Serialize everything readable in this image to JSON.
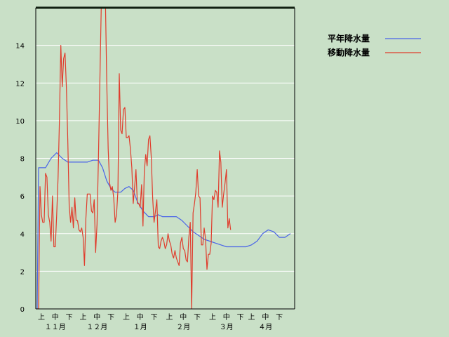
{
  "chart_data": {
    "type": "line",
    "title": "",
    "xlabel": "",
    "ylabel": "",
    "ylim": [
      0,
      16
    ],
    "yticks": [
      0,
      2,
      4,
      6,
      8,
      10,
      12,
      14
    ],
    "xlim": [
      0,
      184
    ],
    "grid": true,
    "legend_position": "top-right",
    "x_sublabels": [
      {
        "x": 3,
        "label": "上"
      },
      {
        "x": 13,
        "label": "中"
      },
      {
        "x": 23,
        "label": "下"
      },
      {
        "x": 33,
        "label": "上"
      },
      {
        "x": 43,
        "label": "中"
      },
      {
        "x": 53,
        "label": "下"
      },
      {
        "x": 64,
        "label": "上"
      },
      {
        "x": 74,
        "label": "中"
      },
      {
        "x": 84,
        "label": "下"
      },
      {
        "x": 95,
        "label": "上"
      },
      {
        "x": 105,
        "label": "中"
      },
      {
        "x": 115,
        "label": "下"
      },
      {
        "x": 126,
        "label": "上"
      },
      {
        "x": 136,
        "label": "中"
      },
      {
        "x": 146,
        "label": "下"
      },
      {
        "x": 154,
        "label": "上"
      },
      {
        "x": 164,
        "label": "中"
      },
      {
        "x": 174,
        "label": "下"
      }
    ],
    "x_months": [
      {
        "x": 13,
        "label": "１１月"
      },
      {
        "x": 43,
        "label": "１２月"
      },
      {
        "x": 74,
        "label": "１月"
      },
      {
        "x": 105,
        "label": "２月"
      },
      {
        "x": 136,
        "label": "３月"
      },
      {
        "x": 164,
        "label": "４月"
      }
    ],
    "series": [
      {
        "name": "平年降水量",
        "color": "#4a64e8",
        "points": [
          [
            0,
            0
          ],
          [
            1,
            7.5
          ],
          [
            6,
            7.5
          ],
          [
            10,
            8
          ],
          [
            14,
            8.3
          ],
          [
            18,
            8
          ],
          [
            22,
            7.8
          ],
          [
            30,
            7.8
          ],
          [
            36,
            7.8
          ],
          [
            40,
            7.9
          ],
          [
            44,
            7.9
          ],
          [
            47,
            7.5
          ],
          [
            50,
            6.8
          ],
          [
            53,
            6.4
          ],
          [
            56,
            6.2
          ],
          [
            60,
            6.2
          ],
          [
            63,
            6.4
          ],
          [
            66,
            6.5
          ],
          [
            69,
            6.3
          ],
          [
            72,
            5.7
          ],
          [
            76,
            5.2
          ],
          [
            80,
            4.9
          ],
          [
            84,
            4.9
          ],
          [
            87,
            5
          ],
          [
            90,
            4.9
          ],
          [
            96,
            4.9
          ],
          [
            100,
            4.9
          ],
          [
            104,
            4.7
          ],
          [
            108,
            4.4
          ],
          [
            112,
            4.1
          ],
          [
            116,
            3.9
          ],
          [
            120,
            3.7
          ],
          [
            124,
            3.6
          ],
          [
            128,
            3.5
          ],
          [
            132,
            3.4
          ],
          [
            136,
            3.3
          ],
          [
            140,
            3.3
          ],
          [
            146,
            3.3
          ],
          [
            150,
            3.3
          ],
          [
            154,
            3.4
          ],
          [
            158,
            3.6
          ],
          [
            162,
            4
          ],
          [
            166,
            4.2
          ],
          [
            170,
            4.1
          ],
          [
            174,
            3.8
          ],
          [
            178,
            3.8
          ],
          [
            182,
            4
          ]
        ]
      },
      {
        "name": "移動降水量",
        "color": "#e03c2c",
        "points": [
          [
            0,
            0
          ],
          [
            1,
            0
          ],
          [
            2,
            6.5
          ],
          [
            3,
            5
          ],
          [
            4,
            4.6
          ],
          [
            5,
            4.6
          ],
          [
            6,
            7.2
          ],
          [
            7,
            7
          ],
          [
            8,
            5
          ],
          [
            9,
            4.6
          ],
          [
            10,
            3.6
          ],
          [
            11,
            6
          ],
          [
            12,
            3.3
          ],
          [
            13,
            3.3
          ],
          [
            14,
            5
          ],
          [
            15,
            7
          ],
          [
            16,
            10
          ],
          [
            17,
            14
          ],
          [
            18,
            11.8
          ],
          [
            19,
            13.3
          ],
          [
            20,
            13.6
          ],
          [
            21,
            11.7
          ],
          [
            22,
            9
          ],
          [
            23,
            5.5
          ],
          [
            24,
            4.6
          ],
          [
            25,
            5.4
          ],
          [
            26,
            4.3
          ],
          [
            27,
            5.9
          ],
          [
            28,
            4.7
          ],
          [
            29,
            4.7
          ],
          [
            30,
            4.2
          ],
          [
            31,
            4.1
          ],
          [
            32,
            4.3
          ],
          [
            33,
            3.8
          ],
          [
            34,
            2.3
          ],
          [
            35,
            4.8
          ],
          [
            36,
            6.1
          ],
          [
            37,
            6.1
          ],
          [
            38,
            6.1
          ],
          [
            39,
            5.2
          ],
          [
            40,
            5.1
          ],
          [
            41,
            5.8
          ],
          [
            42,
            3
          ],
          [
            43,
            4.5
          ],
          [
            44,
            8
          ],
          [
            45,
            12
          ],
          [
            46,
            16
          ],
          [
            47,
            17.3
          ],
          [
            48,
            17.2
          ],
          [
            49,
            16.5
          ],
          [
            50,
            12
          ],
          [
            51,
            8.5
          ],
          [
            52,
            6.7
          ],
          [
            53,
            6.3
          ],
          [
            54,
            6.5
          ],
          [
            55,
            5.9
          ],
          [
            56,
            4.6
          ],
          [
            57,
            5
          ],
          [
            58,
            6.3
          ],
          [
            59,
            12.5
          ],
          [
            60,
            9.5
          ],
          [
            61,
            9.3
          ],
          [
            62,
            10.6
          ],
          [
            63,
            10.7
          ],
          [
            64,
            9.1
          ],
          [
            65,
            9.1
          ],
          [
            66,
            9.2
          ],
          [
            67,
            8.5
          ],
          [
            68,
            7.5
          ],
          [
            69,
            5.6
          ],
          [
            70,
            6.5
          ],
          [
            71,
            7.4
          ],
          [
            72,
            5.6
          ],
          [
            73,
            5.6
          ],
          [
            74,
            5.4
          ],
          [
            75,
            6.6
          ],
          [
            76,
            4.4
          ],
          [
            77,
            7.3
          ],
          [
            78,
            8.2
          ],
          [
            79,
            7.6
          ],
          [
            80,
            9
          ],
          [
            81,
            9.2
          ],
          [
            82,
            8
          ],
          [
            83,
            5.9
          ],
          [
            84,
            4.6
          ],
          [
            85,
            5.2
          ],
          [
            86,
            5.8
          ],
          [
            87,
            3.3
          ],
          [
            88,
            3.2
          ],
          [
            89,
            3.6
          ],
          [
            90,
            3.8
          ],
          [
            91,
            3.6
          ],
          [
            92,
            3.2
          ],
          [
            93,
            3.4
          ],
          [
            94,
            4
          ],
          [
            95,
            3.6
          ],
          [
            96,
            3.4
          ],
          [
            97,
            2.9
          ],
          [
            98,
            2.7
          ],
          [
            99,
            3.1
          ],
          [
            100,
            2.7
          ],
          [
            101,
            2.5
          ],
          [
            102,
            2.3
          ],
          [
            103,
            3.5
          ],
          [
            104,
            3.8
          ],
          [
            105,
            3.2
          ],
          [
            106,
            3.1
          ],
          [
            107,
            2.6
          ],
          [
            108,
            2.5
          ],
          [
            109,
            3.8
          ],
          [
            110,
            4.6
          ],
          [
            111,
            0
          ],
          [
            112,
            5.1
          ],
          [
            113,
            5.6
          ],
          [
            114,
            6.2
          ],
          [
            115,
            7.4
          ],
          [
            116,
            6
          ],
          [
            117,
            5.9
          ],
          [
            118,
            3.4
          ],
          [
            119,
            3.4
          ],
          [
            120,
            4.3
          ],
          [
            121,
            3.7
          ],
          [
            122,
            2.1
          ],
          [
            123,
            2.9
          ],
          [
            124,
            2.9
          ],
          [
            125,
            3.5
          ],
          [
            126,
            6
          ],
          [
            127,
            5.8
          ],
          [
            128,
            6.3
          ],
          [
            129,
            6.2
          ],
          [
            130,
            5.4
          ],
          [
            131,
            8.4
          ],
          [
            132,
            7.8
          ],
          [
            133,
            5.4
          ],
          [
            134,
            6.1
          ],
          [
            135,
            6.7
          ],
          [
            136,
            7.4
          ],
          [
            137,
            4.3
          ],
          [
            138,
            4.8
          ],
          [
            139,
            4.2
          ]
        ]
      }
    ]
  }
}
